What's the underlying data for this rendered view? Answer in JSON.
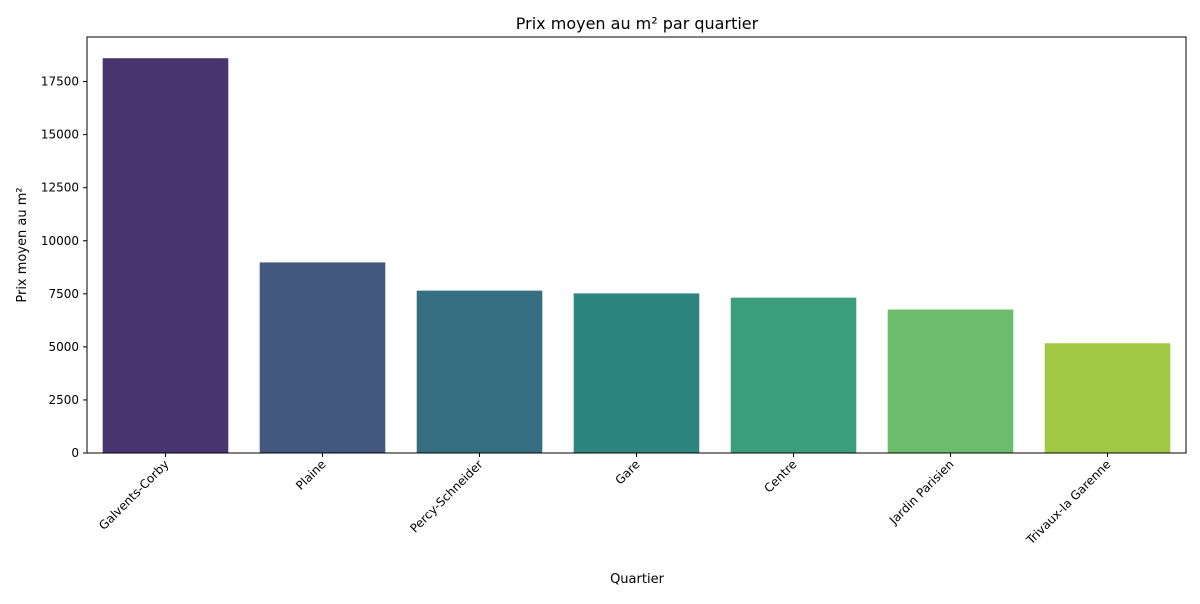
{
  "chart_data": {
    "type": "bar",
    "title": "Prix moyen au m² par quartier",
    "xlabel": "Quartier",
    "ylabel": "Prix moyen au m²",
    "categories": [
      "Galvents-Corby",
      "Plaine",
      "Percy-Schneider",
      "Gare",
      "Centre",
      "Jardin Parisien",
      "Trivaux-la Garenne"
    ],
    "values": [
      18600,
      8980,
      7650,
      7520,
      7320,
      6760,
      5170
    ],
    "colors": [
      "#48346f",
      "#43587f",
      "#366e81",
      "#2e8480",
      "#3a9e7c",
      "#6bbd6b",
      "#a3c845"
    ],
    "ylim": [
      0,
      19600
    ],
    "yticks": [
      0,
      2500,
      5000,
      7500,
      10000,
      12500,
      15000,
      17500
    ],
    "grid": false,
    "legend": "none"
  }
}
